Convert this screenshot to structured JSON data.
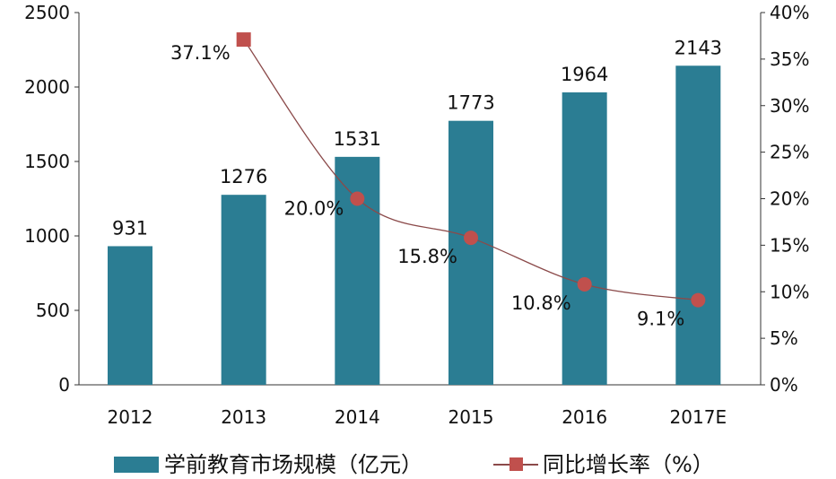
{
  "chart_data": {
    "type": "bar+line",
    "categories": [
      "2012",
      "2013",
      "2014",
      "2015",
      "2016",
      "2017E"
    ],
    "series": [
      {
        "name": "学前教育市场规模（亿元）",
        "type": "bar",
        "axis": "left",
        "values": [
          931,
          1276,
          1531,
          1773,
          1964,
          2143
        ],
        "labels": [
          "931",
          "1276",
          "1531",
          "1773",
          "1964",
          "2143"
        ],
        "color": "#2b7d93"
      },
      {
        "name": "同比增长率（%）",
        "type": "line",
        "axis": "right",
        "values": [
          null,
          37.1,
          20.0,
          15.8,
          10.8,
          9.1
        ],
        "labels": [
          "",
          "37.1%",
          "20.0%",
          "15.8%",
          "10.8%",
          "9.1%"
        ],
        "color": "#c0504d",
        "line_color": "#8b4a4a"
      }
    ],
    "left_axis": {
      "ylim": [
        0,
        2500
      ],
      "ticks": [
        "0",
        "500",
        "1000",
        "1500",
        "2000",
        "2500"
      ]
    },
    "right_axis": {
      "ylim": [
        0,
        40
      ],
      "ticks": [
        "0%",
        "5%",
        "10%",
        "15%",
        "20%",
        "25%",
        "30%",
        "35%",
        "40%"
      ]
    },
    "grid": false,
    "legend": "bottom"
  }
}
